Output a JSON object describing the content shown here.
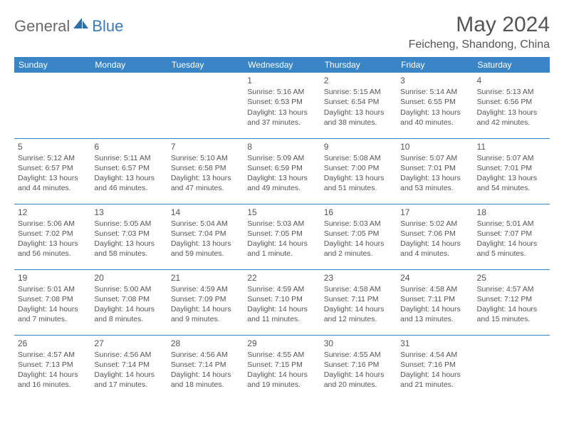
{
  "brand": {
    "part1": "General",
    "part2": "Blue"
  },
  "title": "May 2024",
  "location": "Feicheng, Shandong, China",
  "header_bg": "#3a85c6",
  "header_fg": "#ffffff",
  "rule_color": "#3a85c6",
  "text_color": "#555555",
  "day_headers": [
    "Sunday",
    "Monday",
    "Tuesday",
    "Wednesday",
    "Thursday",
    "Friday",
    "Saturday"
  ],
  "weeks": [
    [
      null,
      null,
      null,
      {
        "d": "1",
        "sr": "Sunrise: 5:16 AM",
        "ss": "Sunset: 6:53 PM",
        "dl1": "Daylight: 13 hours",
        "dl2": "and 37 minutes."
      },
      {
        "d": "2",
        "sr": "Sunrise: 5:15 AM",
        "ss": "Sunset: 6:54 PM",
        "dl1": "Daylight: 13 hours",
        "dl2": "and 38 minutes."
      },
      {
        "d": "3",
        "sr": "Sunrise: 5:14 AM",
        "ss": "Sunset: 6:55 PM",
        "dl1": "Daylight: 13 hours",
        "dl2": "and 40 minutes."
      },
      {
        "d": "4",
        "sr": "Sunrise: 5:13 AM",
        "ss": "Sunset: 6:56 PM",
        "dl1": "Daylight: 13 hours",
        "dl2": "and 42 minutes."
      }
    ],
    [
      {
        "d": "5",
        "sr": "Sunrise: 5:12 AM",
        "ss": "Sunset: 6:57 PM",
        "dl1": "Daylight: 13 hours",
        "dl2": "and 44 minutes."
      },
      {
        "d": "6",
        "sr": "Sunrise: 5:11 AM",
        "ss": "Sunset: 6:57 PM",
        "dl1": "Daylight: 13 hours",
        "dl2": "and 46 minutes."
      },
      {
        "d": "7",
        "sr": "Sunrise: 5:10 AM",
        "ss": "Sunset: 6:58 PM",
        "dl1": "Daylight: 13 hours",
        "dl2": "and 47 minutes."
      },
      {
        "d": "8",
        "sr": "Sunrise: 5:09 AM",
        "ss": "Sunset: 6:59 PM",
        "dl1": "Daylight: 13 hours",
        "dl2": "and 49 minutes."
      },
      {
        "d": "9",
        "sr": "Sunrise: 5:08 AM",
        "ss": "Sunset: 7:00 PM",
        "dl1": "Daylight: 13 hours",
        "dl2": "and 51 minutes."
      },
      {
        "d": "10",
        "sr": "Sunrise: 5:07 AM",
        "ss": "Sunset: 7:01 PM",
        "dl1": "Daylight: 13 hours",
        "dl2": "and 53 minutes."
      },
      {
        "d": "11",
        "sr": "Sunrise: 5:07 AM",
        "ss": "Sunset: 7:01 PM",
        "dl1": "Daylight: 13 hours",
        "dl2": "and 54 minutes."
      }
    ],
    [
      {
        "d": "12",
        "sr": "Sunrise: 5:06 AM",
        "ss": "Sunset: 7:02 PM",
        "dl1": "Daylight: 13 hours",
        "dl2": "and 56 minutes."
      },
      {
        "d": "13",
        "sr": "Sunrise: 5:05 AM",
        "ss": "Sunset: 7:03 PM",
        "dl1": "Daylight: 13 hours",
        "dl2": "and 58 minutes."
      },
      {
        "d": "14",
        "sr": "Sunrise: 5:04 AM",
        "ss": "Sunset: 7:04 PM",
        "dl1": "Daylight: 13 hours",
        "dl2": "and 59 minutes."
      },
      {
        "d": "15",
        "sr": "Sunrise: 5:03 AM",
        "ss": "Sunset: 7:05 PM",
        "dl1": "Daylight: 14 hours",
        "dl2": "and 1 minute."
      },
      {
        "d": "16",
        "sr": "Sunrise: 5:03 AM",
        "ss": "Sunset: 7:05 PM",
        "dl1": "Daylight: 14 hours",
        "dl2": "and 2 minutes."
      },
      {
        "d": "17",
        "sr": "Sunrise: 5:02 AM",
        "ss": "Sunset: 7:06 PM",
        "dl1": "Daylight: 14 hours",
        "dl2": "and 4 minutes."
      },
      {
        "d": "18",
        "sr": "Sunrise: 5:01 AM",
        "ss": "Sunset: 7:07 PM",
        "dl1": "Daylight: 14 hours",
        "dl2": "and 5 minutes."
      }
    ],
    [
      {
        "d": "19",
        "sr": "Sunrise: 5:01 AM",
        "ss": "Sunset: 7:08 PM",
        "dl1": "Daylight: 14 hours",
        "dl2": "and 7 minutes."
      },
      {
        "d": "20",
        "sr": "Sunrise: 5:00 AM",
        "ss": "Sunset: 7:08 PM",
        "dl1": "Daylight: 14 hours",
        "dl2": "and 8 minutes."
      },
      {
        "d": "21",
        "sr": "Sunrise: 4:59 AM",
        "ss": "Sunset: 7:09 PM",
        "dl1": "Daylight: 14 hours",
        "dl2": "and 9 minutes."
      },
      {
        "d": "22",
        "sr": "Sunrise: 4:59 AM",
        "ss": "Sunset: 7:10 PM",
        "dl1": "Daylight: 14 hours",
        "dl2": "and 11 minutes."
      },
      {
        "d": "23",
        "sr": "Sunrise: 4:58 AM",
        "ss": "Sunset: 7:11 PM",
        "dl1": "Daylight: 14 hours",
        "dl2": "and 12 minutes."
      },
      {
        "d": "24",
        "sr": "Sunrise: 4:58 AM",
        "ss": "Sunset: 7:11 PM",
        "dl1": "Daylight: 14 hours",
        "dl2": "and 13 minutes."
      },
      {
        "d": "25",
        "sr": "Sunrise: 4:57 AM",
        "ss": "Sunset: 7:12 PM",
        "dl1": "Daylight: 14 hours",
        "dl2": "and 15 minutes."
      }
    ],
    [
      {
        "d": "26",
        "sr": "Sunrise: 4:57 AM",
        "ss": "Sunset: 7:13 PM",
        "dl1": "Daylight: 14 hours",
        "dl2": "and 16 minutes."
      },
      {
        "d": "27",
        "sr": "Sunrise: 4:56 AM",
        "ss": "Sunset: 7:14 PM",
        "dl1": "Daylight: 14 hours",
        "dl2": "and 17 minutes."
      },
      {
        "d": "28",
        "sr": "Sunrise: 4:56 AM",
        "ss": "Sunset: 7:14 PM",
        "dl1": "Daylight: 14 hours",
        "dl2": "and 18 minutes."
      },
      {
        "d": "29",
        "sr": "Sunrise: 4:55 AM",
        "ss": "Sunset: 7:15 PM",
        "dl1": "Daylight: 14 hours",
        "dl2": "and 19 minutes."
      },
      {
        "d": "30",
        "sr": "Sunrise: 4:55 AM",
        "ss": "Sunset: 7:16 PM",
        "dl1": "Daylight: 14 hours",
        "dl2": "and 20 minutes."
      },
      {
        "d": "31",
        "sr": "Sunrise: 4:54 AM",
        "ss": "Sunset: 7:16 PM",
        "dl1": "Daylight: 14 hours",
        "dl2": "and 21 minutes."
      },
      null
    ]
  ]
}
